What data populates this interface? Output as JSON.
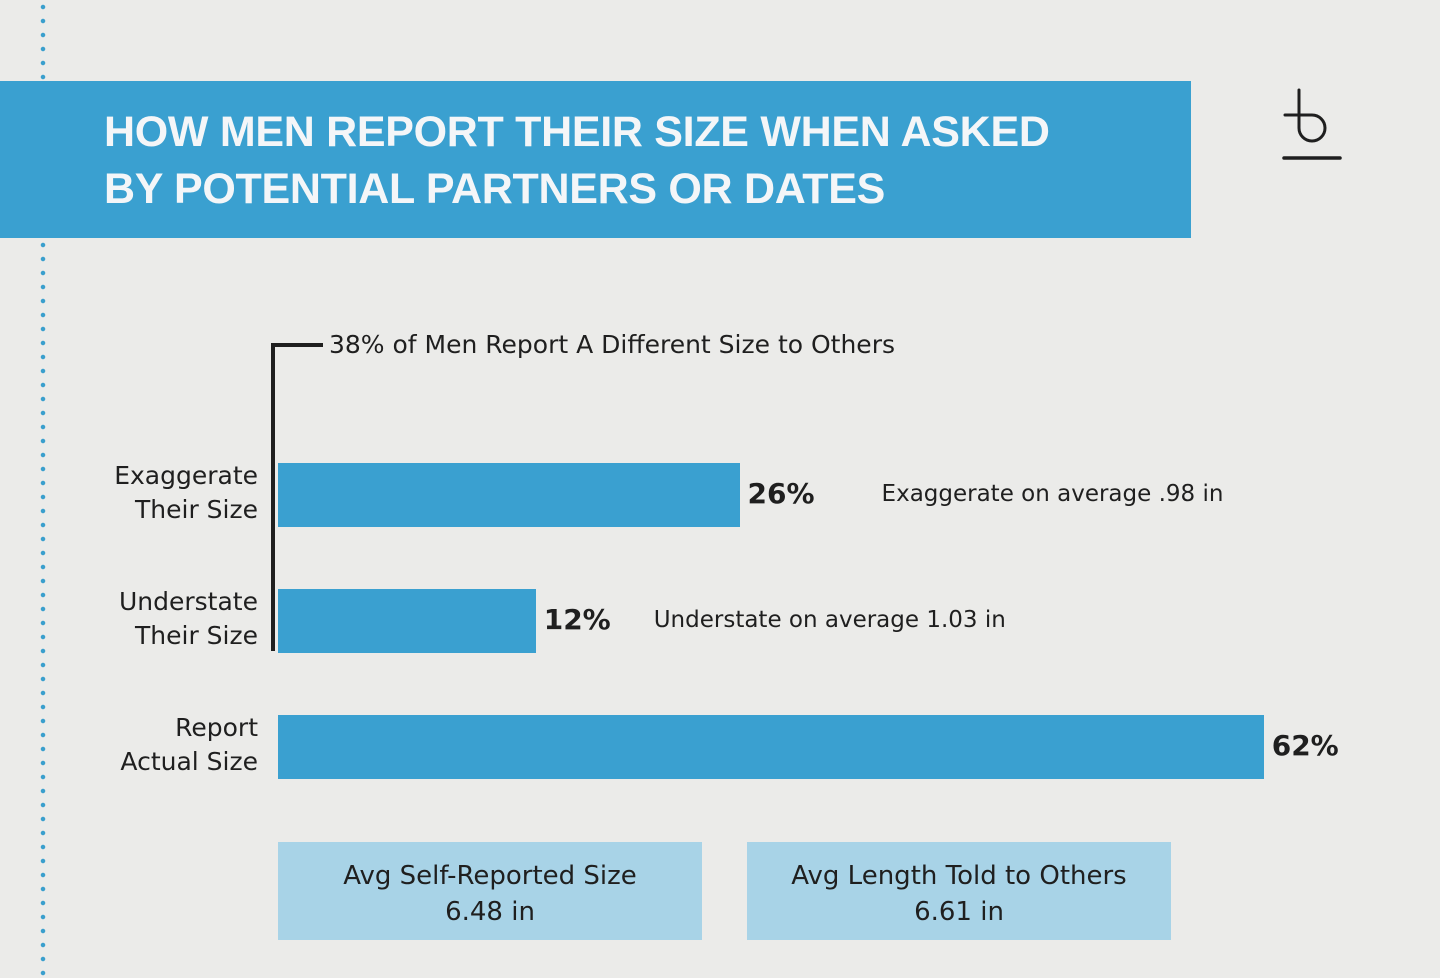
{
  "title_line1": "HOW MEN REPORT THEIR SIZE WHEN ASKED",
  "title_line2": "BY POTENTIAL PARTNERS OR DATES",
  "logo_text": "b",
  "colors": {
    "accent": "#3aa0d0",
    "box": "#a8d3e7",
    "background": "#ebebe9"
  },
  "chart_data": {
    "type": "bar",
    "orientation": "horizontal",
    "title": "How Men Report Their Size When Asked by Potential Partners or Dates",
    "bracket_label": "38% of Men Report A Different Size to Others",
    "categories": [
      {
        "line1": "Exaggerate",
        "line2": "Their Size"
      },
      {
        "line1": "Understate",
        "line2": "Their Size"
      },
      {
        "line1": "Report",
        "line2": "Actual Size"
      }
    ],
    "values": [
      26,
      12,
      62
    ],
    "value_labels": [
      "26%",
      "12%",
      "62%"
    ],
    "notes": [
      "Exaggerate on average .98 in",
      "Understate on average 1.03 in",
      ""
    ]
  },
  "stats": [
    {
      "label": "Avg Self-Reported Size",
      "value": "6.48 in"
    },
    {
      "label": "Avg Length Told to Others",
      "value": "6.61 in"
    }
  ]
}
